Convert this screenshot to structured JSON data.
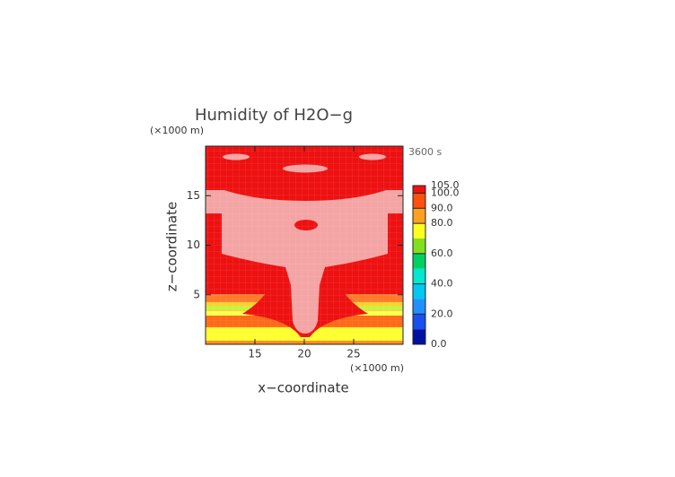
{
  "chart_data": {
    "type": "contour",
    "title": "Humidity of H2O−g",
    "annotation": "3600 s",
    "xlabel": "x−coordinate",
    "ylabel": "z−coordinate",
    "xunit": "(×1000 m)",
    "yunit": "(×1000 m)",
    "xlim": [
      10,
      30
    ],
    "xticks": [
      15,
      20,
      25
    ],
    "ylim": [
      0,
      20
    ],
    "yticks": [
      5,
      10,
      15
    ],
    "colorbar": {
      "levels": [
        0,
        10,
        20,
        30,
        40,
        50,
        60,
        70,
        80,
        90,
        100,
        105
      ],
      "colors": [
        "#0010a0",
        "#1850f0",
        "#2090ff",
        "#00c8f0",
        "#00e8d0",
        "#00d060",
        "#80e020",
        "#ffff20",
        "#ffa020",
        "#ff5010",
        "#ee1111"
      ],
      "ticks": [
        {
          "value": 0,
          "label": "0.0"
        },
        {
          "value": 20,
          "label": "20.0"
        },
        {
          "value": 40,
          "label": "40.0"
        },
        {
          "value": 60,
          "label": "60.0"
        },
        {
          "value": 80,
          "label": "80.0"
        },
        {
          "value": 90,
          "label": "90.0"
        },
        {
          "value": 100,
          "label": "100.0"
        },
        {
          "value": 105,
          "label": "105.0"
        }
      ]
    }
  }
}
